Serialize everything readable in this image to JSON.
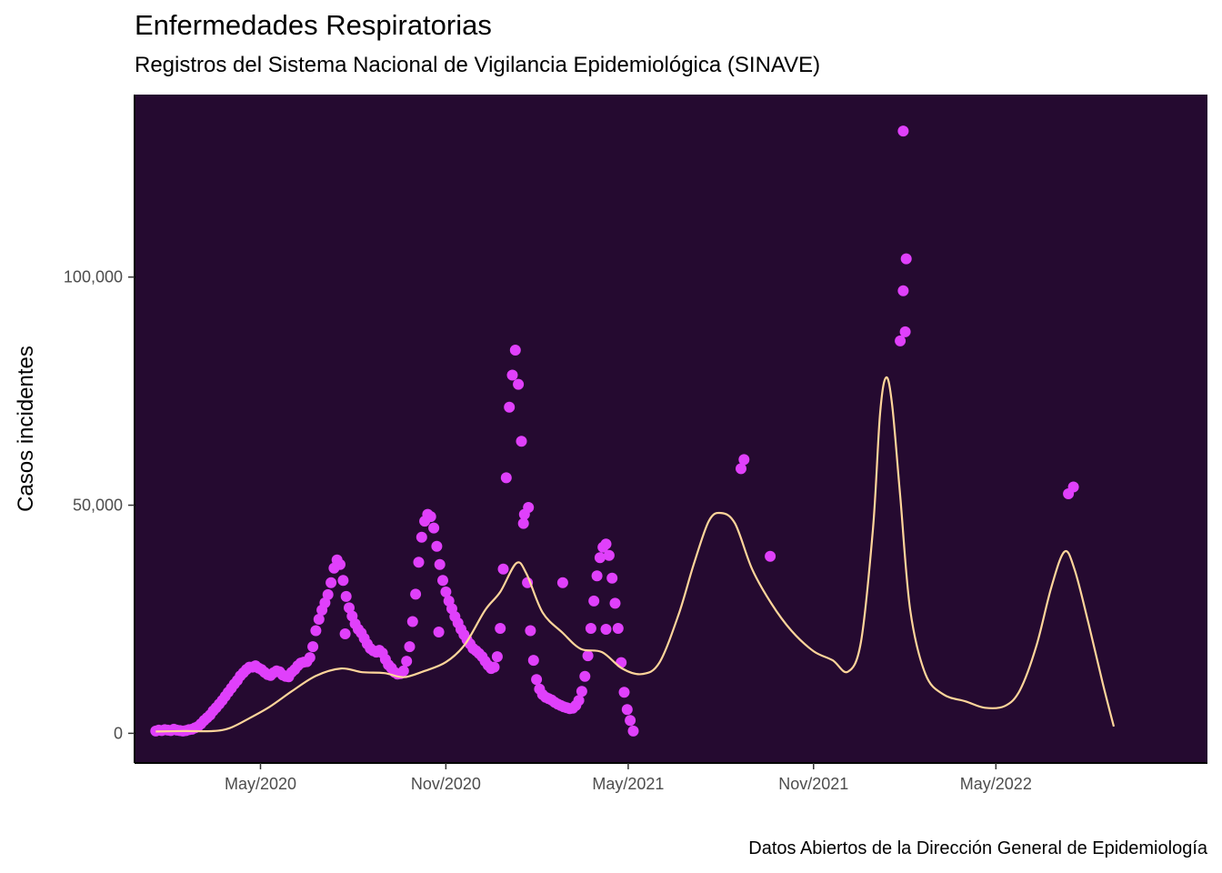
{
  "chart_data": {
    "type": "scatter",
    "title": "Enfermedades Respiratorias",
    "subtitle": "Registros del Sistema Nacional de Vigilancia Epidemiológica (SINAVE)",
    "caption": "Datos Abiertos de la Dirección General de Epidemiología",
    "xlabel": "",
    "ylabel": "Casos incidentes",
    "x_ticks": [
      {
        "date": "2020-05-01",
        "label": "May/2020"
      },
      {
        "date": "2020-11-01",
        "label": "Nov/2020"
      },
      {
        "date": "2021-05-01",
        "label": "May/2021"
      },
      {
        "date": "2021-11-01",
        "label": "Nov/2021"
      },
      {
        "date": "2022-05-01",
        "label": "May/2022"
      }
    ],
    "y_ticks": [
      {
        "value": 0,
        "label": "0"
      },
      {
        "value": 50000,
        "label": "50,000"
      },
      {
        "value": 100000,
        "label": "100,000"
      }
    ],
    "xlim": [
      "2019-12-28",
      "2022-11-27"
    ],
    "ylim": [
      -6500,
      140000
    ],
    "grid": false,
    "colors": {
      "panel": "#250A30",
      "points": "#E040FB",
      "smooth": "#FFD59A"
    },
    "series": [
      {
        "kind": "points",
        "x_start": "2020-01-18",
        "x_step_days": 3,
        "values": [
          500,
          700,
          600,
          800,
          700,
          600,
          900,
          700,
          600,
          500,
          600,
          800,
          900,
          1200,
          1500,
          2100,
          2800,
          3400,
          4000,
          4900,
          5600,
          6400,
          7200,
          8100,
          9000,
          9900,
          10800,
          11600,
          12600,
          13300,
          14000,
          14500,
          14500,
          14800,
          14300,
          14000,
          13400,
          12900,
          12700,
          13300,
          13700,
          13500,
          12800,
          12500,
          12400,
          13400,
          14000,
          14800,
          15400,
          15600,
          15700,
          16600,
          19000,
          22500,
          25000,
          27000,
          28600,
          30400,
          33000,
          36200,
          38000,
          37000,
          33500,
          30000,
          27500,
          25700,
          24000,
          22800,
          22000,
          20800,
          19600,
          18600,
          18100,
          17800,
          18200,
          17600,
          16200,
          15000,
          14300,
          13400,
          13000,
          13100,
          13700,
          15800,
          19000,
          24500,
          30500,
          37500,
          43000,
          46500,
          48000,
          47500,
          45000,
          41000,
          37000,
          33500,
          31000,
          29000,
          27300,
          25600,
          24200,
          22800,
          21600,
          20500,
          19600,
          18600,
          18100,
          17500,
          16800,
          15800,
          14900,
          14200,
          14500,
          16800,
          23000,
          36000,
          56000,
          71500,
          78500,
          84000,
          76500,
          64000,
          48000,
          33000,
          22500,
          16000,
          11800,
          9700,
          8500,
          7900,
          7600,
          7300,
          6800,
          6400,
          6100,
          5800,
          5600,
          5400,
          5500,
          6100,
          7200,
          9200,
          12500,
          17000,
          23000,
          29000,
          34500,
          38500,
          40800,
          41500,
          39000,
          34000,
          28500,
          23000,
          15500,
          9000,
          5200,
          2800,
          500
        ],
        "extra_points": [
          {
            "x": "2022-01-29",
            "y": 132000
          },
          {
            "x": "2022-02-01",
            "y": 104000
          },
          {
            "x": "2022-01-29",
            "y": 97000
          },
          {
            "x": "2022-01-31",
            "y": 88000
          },
          {
            "x": "2022-01-26",
            "y": 86000
          },
          {
            "x": "2021-08-24",
            "y": 60000
          },
          {
            "x": "2021-08-21",
            "y": 58000
          },
          {
            "x": "2022-07-17",
            "y": 54000
          },
          {
            "x": "2022-07-12",
            "y": 52500
          },
          {
            "x": "2021-01-22",
            "y": 49500
          },
          {
            "x": "2021-01-17",
            "y": 46000
          },
          {
            "x": "2020-07-24",
            "y": 21800
          },
          {
            "x": "2021-04-09",
            "y": 22800
          },
          {
            "x": "2021-02-25",
            "y": 33000
          },
          {
            "x": "2021-09-19",
            "y": 38800
          },
          {
            "x": "2020-10-25",
            "y": 22200
          }
        ]
      },
      {
        "kind": "smooth",
        "name": "",
        "points": [
          {
            "x": "2020-01-18",
            "y": 400
          },
          {
            "x": "2020-02-15",
            "y": 500
          },
          {
            "x": "2020-03-15",
            "y": 500
          },
          {
            "x": "2020-04-01",
            "y": 1200
          },
          {
            "x": "2020-04-20",
            "y": 3300
          },
          {
            "x": "2020-05-10",
            "y": 5800
          },
          {
            "x": "2020-06-01",
            "y": 9200
          },
          {
            "x": "2020-06-25",
            "y": 12600
          },
          {
            "x": "2020-07-20",
            "y": 14200
          },
          {
            "x": "2020-08-10",
            "y": 13400
          },
          {
            "x": "2020-09-01",
            "y": 13200
          },
          {
            "x": "2020-09-20",
            "y": 12300
          },
          {
            "x": "2020-10-10",
            "y": 13600
          },
          {
            "x": "2020-11-01",
            "y": 15600
          },
          {
            "x": "2020-11-20",
            "y": 19500
          },
          {
            "x": "2020-12-10",
            "y": 27000
          },
          {
            "x": "2020-12-25",
            "y": 31000
          },
          {
            "x": "2021-01-10",
            "y": 37300
          },
          {
            "x": "2021-01-20",
            "y": 35000
          },
          {
            "x": "2021-02-05",
            "y": 26500
          },
          {
            "x": "2021-02-25",
            "y": 22000
          },
          {
            "x": "2021-03-15",
            "y": 18500
          },
          {
            "x": "2021-04-05",
            "y": 17800
          },
          {
            "x": "2021-04-25",
            "y": 14200
          },
          {
            "x": "2021-05-15",
            "y": 13000
          },
          {
            "x": "2021-06-01",
            "y": 15500
          },
          {
            "x": "2021-06-20",
            "y": 26000
          },
          {
            "x": "2021-07-05",
            "y": 37000
          },
          {
            "x": "2021-07-20",
            "y": 46500
          },
          {
            "x": "2021-08-01",
            "y": 48300
          },
          {
            "x": "2021-08-15",
            "y": 46000
          },
          {
            "x": "2021-09-01",
            "y": 36000
          },
          {
            "x": "2021-09-20",
            "y": 28500
          },
          {
            "x": "2021-10-10",
            "y": 22500
          },
          {
            "x": "2021-11-01",
            "y": 18000
          },
          {
            "x": "2021-11-20",
            "y": 16000
          },
          {
            "x": "2021-12-05",
            "y": 13500
          },
          {
            "x": "2021-12-18",
            "y": 20000
          },
          {
            "x": "2021-12-30",
            "y": 45000
          },
          {
            "x": "2022-01-06",
            "y": 70000
          },
          {
            "x": "2022-01-12",
            "y": 78000
          },
          {
            "x": "2022-01-18",
            "y": 72000
          },
          {
            "x": "2022-01-26",
            "y": 52000
          },
          {
            "x": "2022-02-05",
            "y": 27000
          },
          {
            "x": "2022-02-20",
            "y": 13000
          },
          {
            "x": "2022-03-10",
            "y": 8500
          },
          {
            "x": "2022-04-01",
            "y": 7000
          },
          {
            "x": "2022-04-20",
            "y": 5600
          },
          {
            "x": "2022-05-10",
            "y": 6000
          },
          {
            "x": "2022-05-25",
            "y": 9500
          },
          {
            "x": "2022-06-10",
            "y": 19000
          },
          {
            "x": "2022-06-25",
            "y": 32000
          },
          {
            "x": "2022-07-08",
            "y": 39800
          },
          {
            "x": "2022-07-18",
            "y": 36000
          },
          {
            "x": "2022-08-01",
            "y": 24000
          },
          {
            "x": "2022-08-15",
            "y": 11000
          },
          {
            "x": "2022-08-26",
            "y": 1500
          }
        ]
      }
    ]
  }
}
